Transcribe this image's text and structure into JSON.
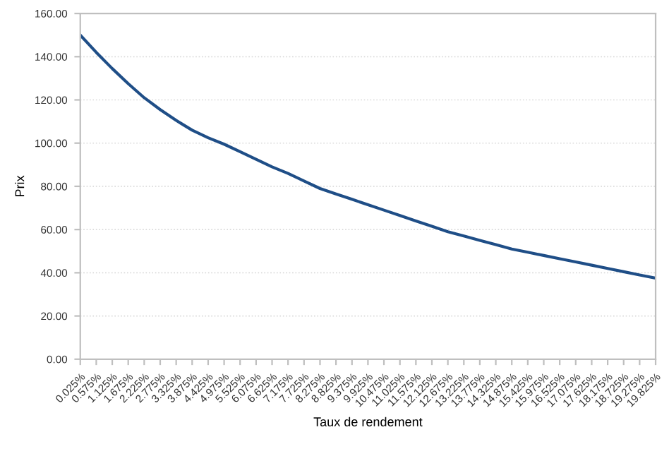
{
  "chart_data": {
    "type": "line",
    "xlabel": "Taux de rendement",
    "ylabel": "Prix",
    "categories": [
      "0.025%",
      "0.575%",
      "1.125%",
      "1.675%",
      "2.225%",
      "2.775%",
      "3.325%",
      "3.875%",
      "4.425%",
      "4.975%",
      "5.525%",
      "6.075%",
      "6.625%",
      "7.175%",
      "7.725%",
      "8.275%",
      "8.825%",
      "9.375%",
      "9.925%",
      "10.475%",
      "11.025%",
      "11.575%",
      "12.125%",
      "12.675%",
      "13.225%",
      "13.775%",
      "14.325%",
      "14.875%",
      "15.425%",
      "15.975%",
      "16.525%",
      "17.075%",
      "17.625%",
      "18.175%",
      "18.725%",
      "19.275%",
      "19.825%"
    ],
    "series": [
      {
        "color": "#1f4e87",
        "values": [
          150,
          142,
          134.5,
          127.5,
          121,
          115.5,
          110.5,
          106,
          102.5,
          99.5,
          96,
          92.5,
          89,
          86,
          82.5,
          79,
          76.5,
          74,
          71.5,
          69,
          66.5,
          64,
          61.5,
          59,
          57,
          55,
          53,
          51,
          49.5,
          48,
          46.5,
          45,
          43.5,
          42,
          40.5,
          39,
          37.5
        ]
      }
    ],
    "ylim": [
      0,
      160
    ],
    "yticks": [
      {
        "value": 0,
        "label": "0.00"
      },
      {
        "value": 20,
        "label": "20.00"
      },
      {
        "value": 40,
        "label": "40.00"
      },
      {
        "value": 60,
        "label": "60.00"
      },
      {
        "value": 80,
        "label": "80.00"
      },
      {
        "value": 100,
        "label": "100.00"
      },
      {
        "value": 120,
        "label": "120.00"
      },
      {
        "value": 140,
        "label": "140.00"
      },
      {
        "value": 160,
        "label": "160.00"
      }
    ],
    "grid": "y",
    "marker": "none",
    "line_style": "solid"
  }
}
